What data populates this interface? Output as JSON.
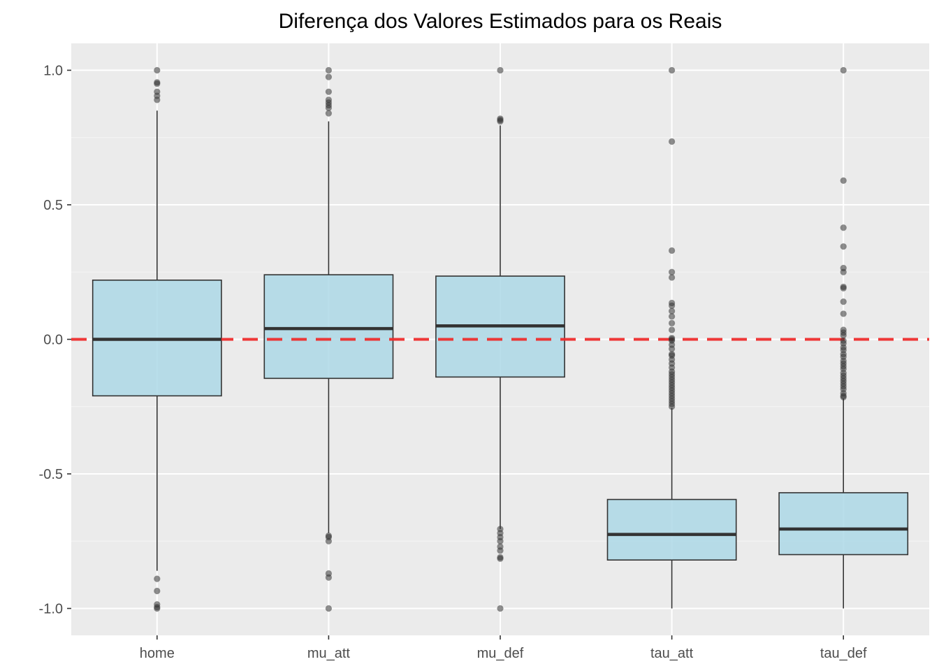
{
  "chart_data": {
    "type": "boxplot",
    "title": "Diferença dos Valores Estimados para os Reais",
    "xlabel": "",
    "ylabel": "",
    "ylim": [
      -1.1,
      1.1
    ],
    "y_ticks": [
      1.0,
      0.5,
      0.0,
      -0.5,
      -1.0
    ],
    "y_tick_labels": [
      "1.0",
      "0.5",
      "0.0",
      "-0.5",
      "-1.0"
    ],
    "grid": true,
    "legend": "none",
    "categories": [
      "home",
      "mu_att",
      "mu_def",
      "tau_att",
      "tau_def"
    ],
    "boxes": [
      {
        "category": "home",
        "q1": -0.21,
        "median": 0.0,
        "q3": 0.22,
        "whisker_low": -0.86,
        "whisker_high": 0.85,
        "outliers": [
          1.0,
          0.955,
          0.95,
          0.92,
          0.905,
          0.89,
          -0.89,
          -0.935,
          -0.985,
          -0.995,
          -1.0
        ]
      },
      {
        "category": "mu_att",
        "q1": -0.145,
        "median": 0.04,
        "q3": 0.24,
        "whisker_low": -0.72,
        "whisker_high": 0.81,
        "outliers": [
          1.0,
          0.975,
          0.92,
          0.89,
          0.88,
          0.87,
          0.86,
          0.84,
          -0.73,
          -0.735,
          -0.75,
          -0.87,
          -0.885,
          -1.0
        ]
      },
      {
        "category": "mu_def",
        "q1": -0.14,
        "median": 0.05,
        "q3": 0.235,
        "whisker_low": -0.705,
        "whisker_high": 0.795,
        "outliers": [
          1.0,
          0.82,
          0.815,
          0.81,
          -0.705,
          -0.72,
          -0.735,
          -0.75,
          -0.77,
          -0.785,
          -0.81,
          -0.815,
          -1.0
        ]
      },
      {
        "category": "tau_att",
        "q1": -0.82,
        "median": -0.725,
        "q3": -0.595,
        "whisker_low": -1.0,
        "whisker_high": -0.255,
        "outliers": [
          1.0,
          0.735,
          0.33,
          0.25,
          0.23,
          0.135,
          0.125,
          0.105,
          0.085,
          0.06,
          0.035,
          0.005,
          0.0,
          -0.005,
          -0.02,
          -0.035,
          -0.055,
          -0.06,
          -0.075,
          -0.09,
          -0.105,
          -0.12,
          -0.13,
          -0.14,
          -0.15,
          -0.16,
          -0.17,
          -0.18,
          -0.19,
          -0.2,
          -0.21,
          -0.22,
          -0.23,
          -0.24,
          -0.25
        ]
      },
      {
        "category": "tau_def",
        "q1": -0.8,
        "median": -0.705,
        "q3": -0.57,
        "whisker_low": -1.0,
        "whisker_high": -0.22,
        "outliers": [
          1.0,
          0.59,
          0.415,
          0.345,
          0.265,
          0.25,
          0.195,
          0.19,
          0.14,
          0.095,
          0.035,
          0.025,
          0.015,
          -0.005,
          -0.015,
          -0.03,
          -0.04,
          -0.055,
          -0.065,
          -0.08,
          -0.09,
          -0.1,
          -0.11,
          -0.125,
          -0.135,
          -0.145,
          -0.155,
          -0.165,
          -0.175,
          -0.185,
          -0.2,
          -0.21,
          -0.215
        ]
      }
    ],
    "reference_line": {
      "y": 0.0,
      "style": "dashed",
      "color": "#ee2c2c"
    },
    "colors": {
      "panel_background": "#ebebeb",
      "grid_major": "#ffffff",
      "grid_minor": "#f5f5f5",
      "box_fill": "#add8e6",
      "box_outline": "#333333",
      "outlier": "#333333",
      "tick_text": "#4d4d4d",
      "title_text": "#000000"
    }
  }
}
